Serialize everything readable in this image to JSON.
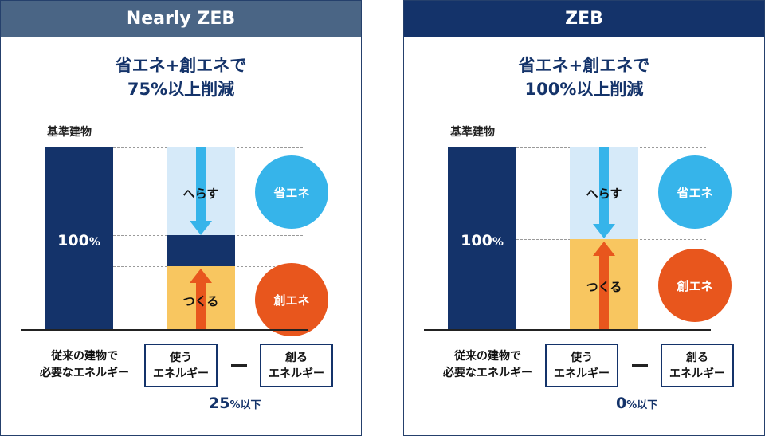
{
  "panels": [
    {
      "title": "Nearly ZEB",
      "headline_line1": "省エネ+創エネで",
      "headline_line2": "75%以上削減",
      "base_label": "基準建物",
      "base_value": "100",
      "base_unit": "%",
      "reduce_label": "へらす",
      "create_label": "つくる",
      "circle_save": "省エネ",
      "circle_create": "創エネ",
      "formula_label_line1": "従来の建物で",
      "formula_label_line2": "必要なエネルギー",
      "box1_line1": "使う",
      "box1_line2": "エネルギー",
      "box2_line1": "創る",
      "box2_line2": "エネルギー",
      "result_value": "25",
      "result_unit": "%以下"
    },
    {
      "title": "ZEB",
      "headline_line1": "省エネ+創エネで",
      "headline_line2": "100%以上削減",
      "base_label": "基準建物",
      "base_value": "100",
      "base_unit": "%",
      "reduce_label": "へらす",
      "create_label": "つくる",
      "circle_save": "省エネ",
      "circle_create": "創エネ",
      "formula_label_line1": "従来の建物で",
      "formula_label_line2": "必要なエネルギー",
      "box1_line1": "使う",
      "box1_line2": "エネルギー",
      "box2_line1": "創る",
      "box2_line2": "エネルギー",
      "result_value": "0",
      "result_unit": "%以下"
    }
  ],
  "colors": {
    "navy": "#14336a",
    "header_nearly_zeb": "#4a6585",
    "light_blue": "#36b4ea",
    "pale_blue": "#d6eaf9",
    "orange": "#e8561d",
    "yellow": "#f8c660"
  }
}
